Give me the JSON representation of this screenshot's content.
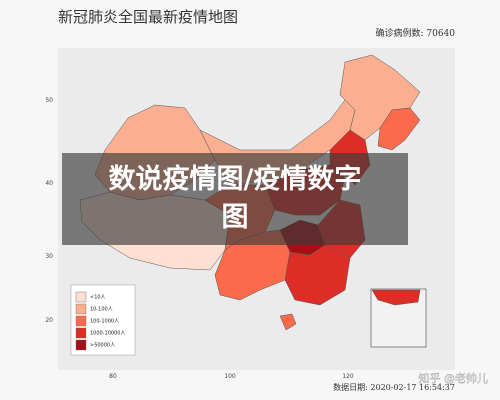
{
  "header": {
    "title": "新冠肺炎全国最新疫情地图",
    "total": "确诊病例数: 70640"
  },
  "axes": {
    "y_labels": [
      "50",
      "40",
      "30",
      "20"
    ],
    "x_labels": [
      "80",
      "100",
      "120"
    ]
  },
  "legend": {
    "items": [
      "<10人",
      "10-100人",
      "100-1000人",
      "1000-10000人",
      ">50000人"
    ]
  },
  "footer": {
    "date": "数据日期: 2020-02-17 16:54:37",
    "watermark": "知乎 @老帅儿"
  },
  "overlay": {
    "lines": [
      "数说疫情图/疫情数字",
      "图"
    ]
  }
}
